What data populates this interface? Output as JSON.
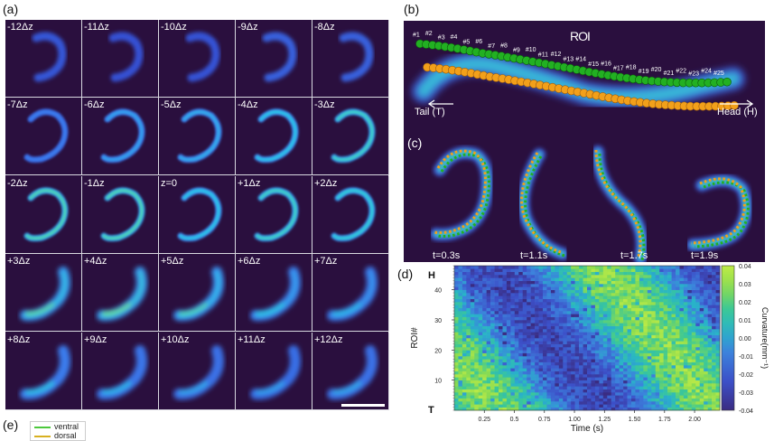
{
  "panel_labels": {
    "a": "(a)",
    "b": "(b)",
    "c": "(c)",
    "d": "(d)",
    "e": "(e)"
  },
  "panel_a": {
    "slices": [
      "-12Δz",
      "-11Δz",
      "-10Δz",
      "-9Δz",
      "-8Δz",
      "-7Δz",
      "-6Δz",
      "-5Δz",
      "-4Δz",
      "-3Δz",
      "-2Δz",
      "-1Δz",
      "z=0",
      "+1Δz",
      "+2Δz",
      "+3Δz",
      "+4Δz",
      "+5Δz",
      "+6Δz",
      "+7Δz",
      "+8Δz",
      "+9Δz",
      "+10Δz",
      "+11Δz",
      "+12Δz"
    ]
  },
  "panel_b": {
    "title": "ROI",
    "roi_labels": [
      "#1",
      "#2",
      "#3",
      "#4",
      "#5",
      "#6",
      "#7",
      "#8",
      "#9",
      "#10",
      "#11",
      "#12",
      "#13",
      "#14",
      "#15",
      "#16",
      "#17",
      "#18",
      "#19",
      "#20",
      "#21",
      "#22",
      "#23",
      "#24",
      "#25"
    ],
    "tail_label": "Tail (T)",
    "head_label": "Head (H)"
  },
  "panel_c": {
    "times": [
      "t=0.3s",
      "t=1.1s",
      "t=1.7s",
      "t=1.9s"
    ]
  },
  "panel_e": {
    "legend": [
      {
        "label": "ventral",
        "color": "#4cc83c"
      },
      {
        "label": "dorsal",
        "color": "#d8b020"
      }
    ]
  },
  "colors": {
    "background_dark": "#2a0f3e",
    "ventral_marker": "#22b022",
    "dorsal_marker": "#f2a01a"
  },
  "chart_data": {
    "type": "heatmap",
    "title": "",
    "xlabel": "Time (s)",
    "ylabel": "ROI#",
    "colorbar_label": "Curvature(mm⁻¹)",
    "xlim": [
      0,
      2.21
    ],
    "ylim": [
      0,
      48
    ],
    "x_ticks": [
      "0.25",
      "0.5",
      "0.75",
      "1.00",
      "1.25",
      "1.50",
      "1.75",
      "2.00"
    ],
    "x_tick_values": [
      0.25,
      0.5,
      0.75,
      1.0,
      1.25,
      1.5,
      1.75,
      2.0
    ],
    "y_ticks": [
      "10",
      "20",
      "30",
      "40"
    ],
    "y_tick_values": [
      10,
      20,
      30,
      40
    ],
    "y_end_labels": {
      "top": "H",
      "bottom": "T"
    },
    "clim": [
      -0.04,
      0.04
    ],
    "colorbar_ticks": [
      "0.04",
      "0.03",
      "0.02",
      "0.01",
      "0.00",
      "-0.01",
      "-0.02",
      "-0.03",
      "-0.04"
    ],
    "colorbar_tick_values": [
      0.04,
      0.03,
      0.02,
      0.01,
      0.0,
      -0.01,
      -0.02,
      -0.03,
      -0.04
    ],
    "n_time_bins": 66,
    "n_roi_bins": 48,
    "pattern": "traveling curvature wave from head to tail; positive (yellow-green) at ROI 24-48 for t<0.85s and t>1.6s, negative (blue) at ROI 0-24 for t<0.9s; diagonal bands moving tailward"
  }
}
